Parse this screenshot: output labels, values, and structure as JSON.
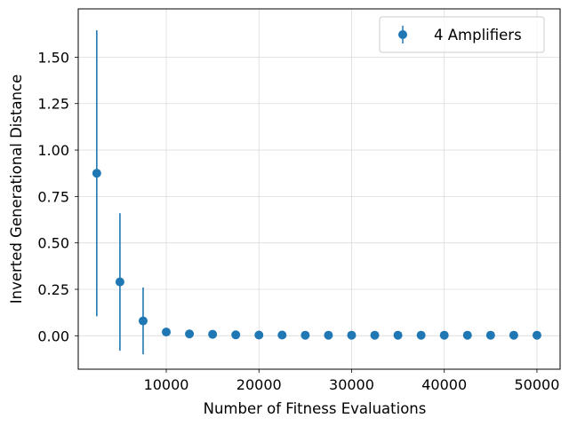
{
  "chart_data": {
    "type": "scatter",
    "title": "",
    "xlabel": "Number of Fitness Evaluations",
    "ylabel": "Inverted Generational Distance",
    "xlim": [
      500,
      52500
    ],
    "ylim": [
      -0.18,
      1.76
    ],
    "x_ticks": [
      10000,
      20000,
      30000,
      40000,
      50000
    ],
    "x_tick_labels": [
      "10000",
      "20000",
      "30000",
      "40000",
      "50000"
    ],
    "y_ticks": [
      0.0,
      0.25,
      0.5,
      0.75,
      1.0,
      1.25,
      1.5
    ],
    "y_tick_labels": [
      "0.00",
      "0.25",
      "0.50",
      "0.75",
      "1.00",
      "1.25",
      "1.50"
    ],
    "grid": true,
    "legend": {
      "position": "top-right",
      "entries": [
        "4 Amplifiers"
      ]
    },
    "series": [
      {
        "name": "4 Amplifiers",
        "color": "#1f77b4",
        "marker": "circle",
        "x": [
          2500,
          5000,
          7500,
          10000,
          12500,
          15000,
          17500,
          20000,
          22500,
          25000,
          27500,
          30000,
          32500,
          35000,
          37500,
          40000,
          42500,
          45000,
          47500,
          50000
        ],
        "y": [
          0.875,
          0.29,
          0.08,
          0.02,
          0.01,
          0.008,
          0.005,
          0.004,
          0.004,
          0.003,
          0.003,
          0.003,
          0.003,
          0.003,
          0.003,
          0.003,
          0.003,
          0.003,
          0.003,
          0.003
        ],
        "yerr": [
          0.77,
          0.37,
          0.18,
          0.015,
          0.006,
          0.004,
          0.003,
          0.002,
          0.002,
          0.002,
          0.002,
          0.002,
          0.002,
          0.002,
          0.002,
          0.002,
          0.002,
          0.002,
          0.002,
          0.002
        ]
      }
    ]
  }
}
